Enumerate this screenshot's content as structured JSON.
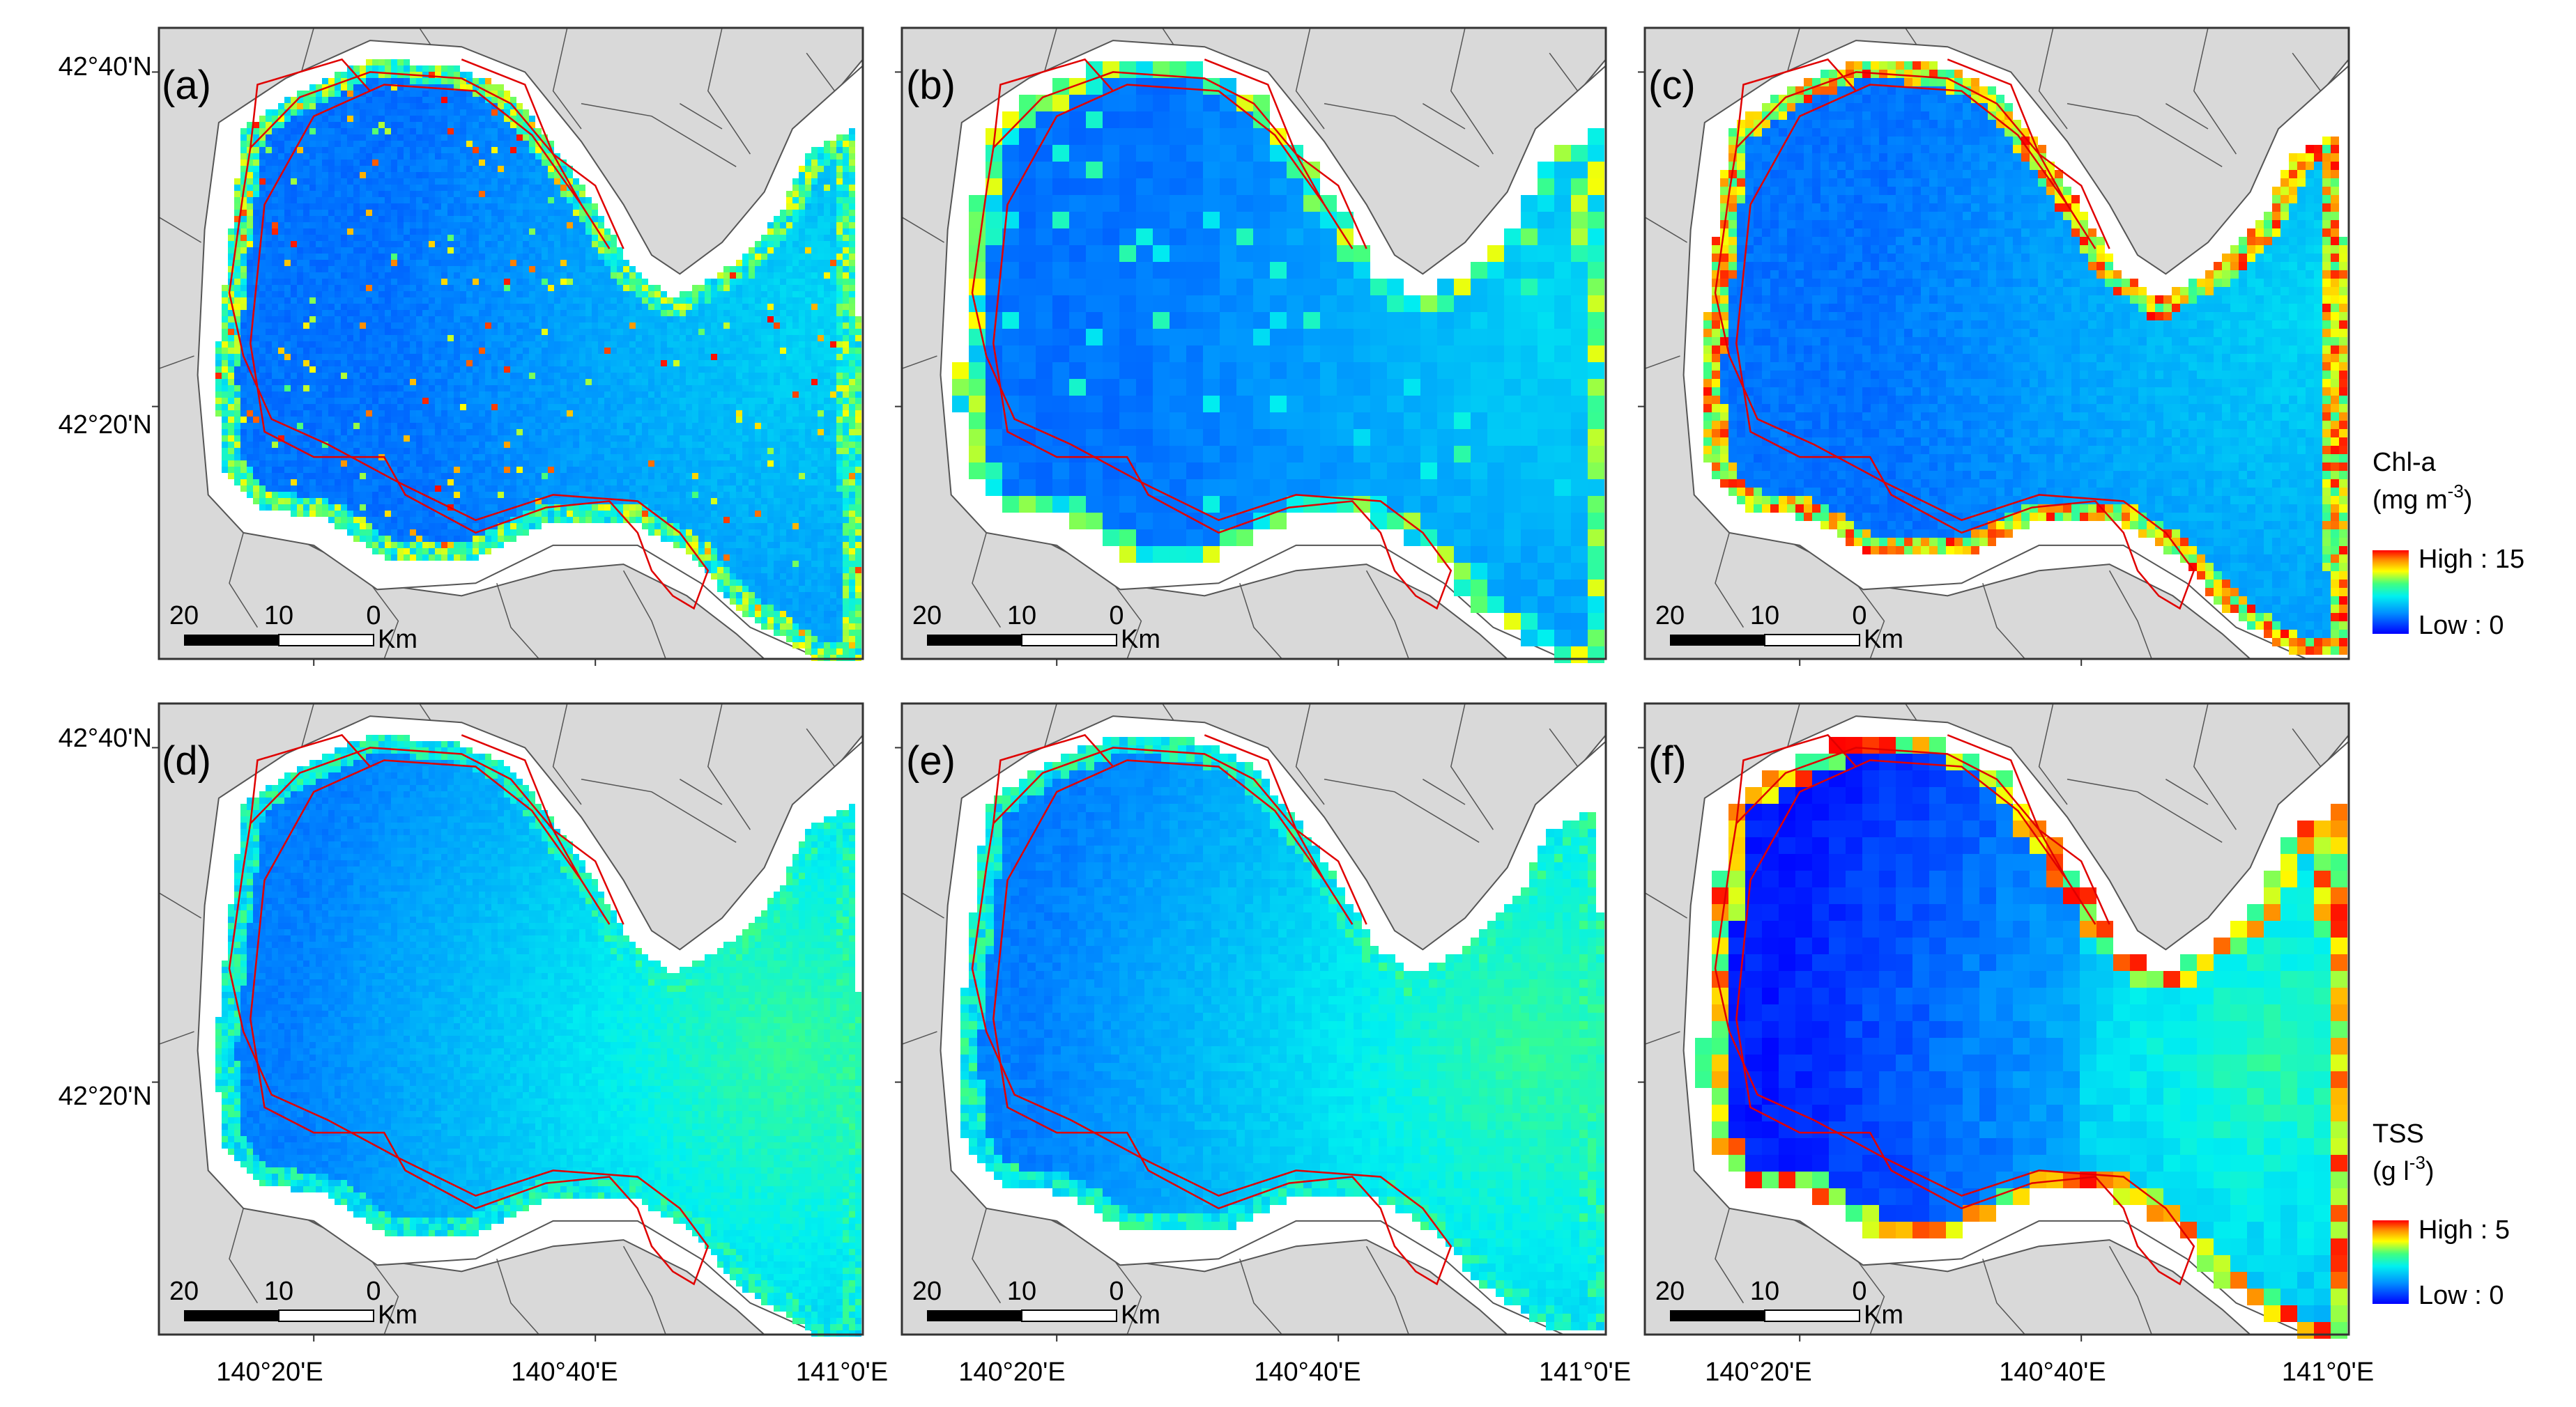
{
  "panels": [
    {
      "label": "(a)",
      "variable": "chl",
      "texture": "speckle",
      "edge": "red"
    },
    {
      "label": "(b)",
      "variable": "chl",
      "texture": "blocky",
      "edge": "red"
    },
    {
      "label": "(c)",
      "variable": "chl",
      "texture": "smooth",
      "edge": "strong"
    },
    {
      "label": "(d)",
      "variable": "tss",
      "texture": "speckle",
      "edge": "mild"
    },
    {
      "label": "(e)",
      "variable": "tss",
      "texture": "smooth",
      "edge": "mild"
    },
    {
      "label": "(f)",
      "variable": "tss",
      "texture": "blocky",
      "edge": "strong"
    }
  ],
  "lat_labels": [
    "42°40'N",
    "42°20'N"
  ],
  "lon_labels": [
    "140°20'E",
    "140°40'E",
    "141°0'E"
  ],
  "scale_bar": {
    "ticks": [
      "20",
      "10",
      "0"
    ],
    "unit": "Km"
  },
  "legends": [
    {
      "title": "Chl-a",
      "unit_prefix": "(mg m",
      "unit_exp": "-3",
      "unit_suffix": ")",
      "high": "High : 15",
      "low": "Low : 0"
    },
    {
      "title": "TSS",
      "unit_prefix": "(g l",
      "unit_exp": "-3",
      "unit_suffix": ")",
      "high": "High : 5",
      "low": "Low : 0"
    }
  ],
  "colors": {
    "land": "#d9d9d9",
    "land_outline": "#555555",
    "protected_area": "#e00000",
    "frame": "#333333",
    "background": "#ffffff"
  }
}
